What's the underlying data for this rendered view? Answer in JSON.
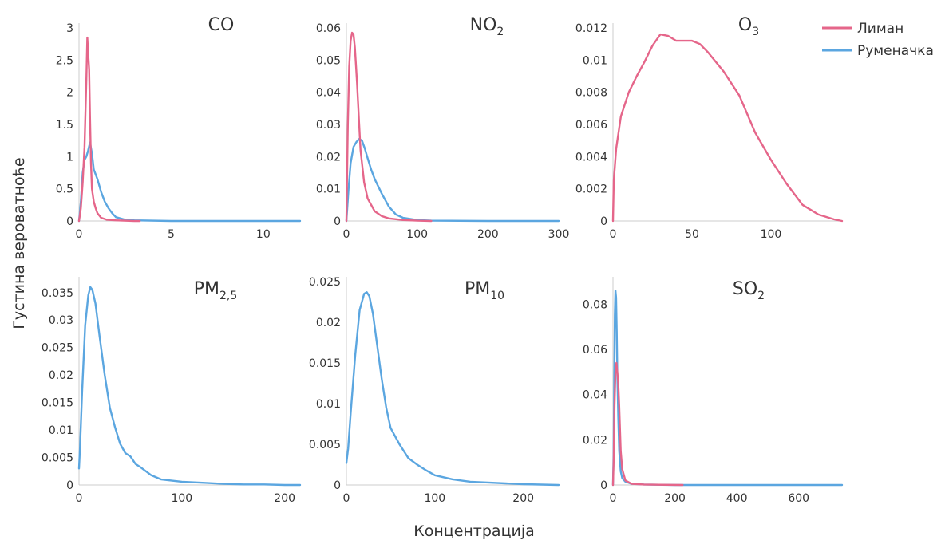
{
  "figure": {
    "ylabel": "Густина вероватноће",
    "xlabel": "Концентрација",
    "legend": {
      "placement": "top-right",
      "items": [
        {
          "name": "Лиман",
          "color": "#e5668a"
        },
        {
          "name": "Руменачка",
          "color": "#5ba6e0"
        }
      ]
    }
  },
  "chart_data": [
    {
      "type": "line",
      "title_main": "CO",
      "title_sub": "",
      "xlim": [
        0,
        12
      ],
      "ylim": [
        0,
        3
      ],
      "xticks": [
        0,
        5,
        10
      ],
      "yticks": [
        0,
        0.5,
        1,
        1.5,
        2,
        2.5,
        3
      ],
      "xtick_labels": [
        "0",
        "5",
        "10"
      ],
      "ytick_labels": [
        "0",
        "0.5",
        "1",
        "1.5",
        "2",
        "2.5",
        "3"
      ],
      "series": [
        {
          "name": "Лиман",
          "color": "#e5668a",
          "x": [
            0,
            0.1,
            0.2,
            0.3,
            0.4,
            0.45,
            0.5,
            0.55,
            0.6,
            0.65,
            0.7,
            0.8,
            0.9,
            1.0,
            1.2,
            1.5,
            2.0,
            3.0,
            3.3
          ],
          "y": [
            0,
            0.2,
            0.6,
            1.15,
            2.2,
            2.85,
            2.6,
            2.35,
            1.6,
            0.9,
            0.5,
            0.3,
            0.2,
            0.12,
            0.05,
            0.02,
            0.01,
            0,
            0
          ]
        },
        {
          "name": "Руменачка",
          "color": "#5ba6e0",
          "x": [
            0,
            0.1,
            0.2,
            0.3,
            0.4,
            0.5,
            0.6,
            0.7,
            0.8,
            1.0,
            1.2,
            1.4,
            1.5,
            1.6,
            1.8,
            2.0,
            2.5,
            3.0,
            5.0,
            8.0,
            12.0
          ],
          "y": [
            0,
            0.3,
            0.75,
            0.95,
            1.0,
            1.1,
            1.22,
            1.05,
            0.8,
            0.65,
            0.45,
            0.3,
            0.25,
            0.2,
            0.12,
            0.06,
            0.02,
            0.01,
            0,
            0,
            0
          ]
        }
      ]
    },
    {
      "type": "line",
      "title_main": "NO",
      "title_sub": "2",
      "xlim": [
        0,
        300
      ],
      "ylim": [
        0,
        0.06
      ],
      "xticks": [
        0,
        100,
        200,
        300
      ],
      "yticks": [
        0,
        0.01,
        0.02,
        0.03,
        0.04,
        0.05,
        0.06
      ],
      "xtick_labels": [
        "0",
        "100",
        "200",
        "300"
      ],
      "ytick_labels": [
        "0",
        "0.01",
        "0.02",
        "0.03",
        "0.04",
        "0.05",
        "0.06"
      ],
      "series": [
        {
          "name": "Лиман",
          "color": "#e5668a",
          "x": [
            0,
            2,
            4,
            6,
            8,
            10,
            12,
            15,
            18,
            20,
            25,
            30,
            40,
            50,
            60,
            80,
            100,
            120
          ],
          "y": [
            0,
            0.03,
            0.048,
            0.056,
            0.0585,
            0.058,
            0.054,
            0.043,
            0.03,
            0.022,
            0.012,
            0.007,
            0.003,
            0.0015,
            0.0008,
            0.0003,
            0.0001,
            0
          ]
        },
        {
          "name": "Руменачка",
          "color": "#5ba6e0",
          "x": [
            0,
            3,
            6,
            10,
            14,
            18,
            22,
            26,
            30,
            35,
            40,
            50,
            60,
            70,
            80,
            100,
            120,
            200,
            300
          ],
          "y": [
            0,
            0.01,
            0.018,
            0.023,
            0.0245,
            0.0255,
            0.025,
            0.0225,
            0.0195,
            0.016,
            0.013,
            0.0085,
            0.0045,
            0.002,
            0.001,
            0.0003,
            0.0001,
            0,
            0
          ]
        }
      ]
    },
    {
      "type": "line",
      "title_main": "O",
      "title_sub": "3",
      "xlim": [
        0,
        145
      ],
      "ylim": [
        0,
        0.012
      ],
      "xticks": [
        0,
        50,
        100
      ],
      "yticks": [
        0,
        0.002,
        0.004,
        0.006,
        0.008,
        0.01,
        0.012
      ],
      "xtick_labels": [
        "0",
        "50",
        "100"
      ],
      "ytick_labels": [
        "0",
        "0.002",
        "0.004",
        "0.006",
        "0.008",
        "0.01",
        "0.012"
      ],
      "series": [
        {
          "name": "Лиман",
          "color": "#e5668a",
          "x": [
            0,
            0.5,
            2,
            5,
            10,
            15,
            20,
            25,
            30,
            35,
            40,
            45,
            50,
            55,
            60,
            70,
            80,
            90,
            100,
            110,
            120,
            130,
            140,
            145
          ],
          "y": [
            0,
            0.0025,
            0.0045,
            0.0065,
            0.008,
            0.009,
            0.0099,
            0.0109,
            0.0116,
            0.0115,
            0.0112,
            0.0112,
            0.0112,
            0.011,
            0.0105,
            0.0093,
            0.0078,
            0.0055,
            0.0038,
            0.0023,
            0.001,
            0.0004,
            0.0001,
            0
          ]
        }
      ]
    },
    {
      "type": "line",
      "title_main": "PM",
      "title_sub": "2,5",
      "xlim": [
        0,
        215
      ],
      "ylim": [
        0,
        0.037
      ],
      "xticks": [
        0,
        100,
        200
      ],
      "yticks": [
        0,
        0.005,
        0.01,
        0.015,
        0.02,
        0.025,
        0.03,
        0.035
      ],
      "xtick_labels": [
        "0",
        "100",
        "200"
      ],
      "ytick_labels": [
        "0",
        "0.005",
        "0.01",
        "0.015",
        "0.02",
        "0.025",
        "0.03",
        "0.035"
      ],
      "series": [
        {
          "name": "Руменачка",
          "color": "#5ba6e0",
          "x": [
            0,
            1,
            3,
            6,
            9,
            11,
            13,
            16,
            20,
            25,
            30,
            35,
            40,
            45,
            50,
            55,
            60,
            70,
            80,
            100,
            120,
            140,
            160,
            180,
            200,
            215
          ],
          "y": [
            0.003,
            0.007,
            0.017,
            0.029,
            0.0345,
            0.036,
            0.0355,
            0.033,
            0.027,
            0.02,
            0.014,
            0.0105,
            0.0075,
            0.0058,
            0.0052,
            0.0038,
            0.0032,
            0.0018,
            0.001,
            0.0006,
            0.0004,
            0.0002,
            0.0001,
            0.0001,
            0,
            0
          ]
        }
      ]
    },
    {
      "type": "line",
      "title_main": "PM",
      "title_sub": "10",
      "xlim": [
        0,
        240
      ],
      "ylim": [
        0,
        0.025
      ],
      "xticks": [
        0,
        100,
        200
      ],
      "yticks": [
        0,
        0.005,
        0.01,
        0.015,
        0.02,
        0.025
      ],
      "xtick_labels": [
        "0",
        "100",
        "200"
      ],
      "ytick_labels": [
        "0",
        "0.005",
        "0.01",
        "0.015",
        "0.02",
        "0.025"
      ],
      "series": [
        {
          "name": "Руменачка",
          "color": "#5ba6e0",
          "x": [
            0,
            2,
            5,
            10,
            15,
            20,
            23,
            26,
            30,
            35,
            40,
            45,
            50,
            60,
            70,
            80,
            90,
            100,
            120,
            140,
            160,
            180,
            200,
            240
          ],
          "y": [
            0.0027,
            0.0045,
            0.009,
            0.016,
            0.0215,
            0.0235,
            0.0237,
            0.0232,
            0.021,
            0.017,
            0.013,
            0.0095,
            0.007,
            0.005,
            0.0033,
            0.0025,
            0.0018,
            0.0012,
            0.0007,
            0.0004,
            0.0003,
            0.0002,
            0.0001,
            0
          ]
        }
      ]
    },
    {
      "type": "line",
      "title_main": "SO",
      "title_sub": "2",
      "xlim": [
        0,
        740
      ],
      "ylim": [
        0,
        0.09
      ],
      "xticks": [
        0,
        200,
        400,
        600
      ],
      "yticks": [
        0,
        0.02,
        0.04,
        0.06,
        0.08
      ],
      "xtick_labels": [
        "0",
        "200",
        "400",
        "600"
      ],
      "ytick_labels": [
        "0",
        "0.02",
        "0.04",
        "0.06",
        "0.08"
      ],
      "series": [
        {
          "name": "Лиман",
          "color": "#e5668a",
          "x": [
            0,
            2,
            5,
            8,
            11,
            14,
            17,
            20,
            25,
            30,
            40,
            60,
            100,
            150,
            225
          ],
          "y": [
            0,
            0.01,
            0.035,
            0.05,
            0.054,
            0.05,
            0.045,
            0.035,
            0.015,
            0.007,
            0.002,
            0.0005,
            0.0002,
            0.0001,
            0
          ]
        },
        {
          "name": "Руменачка",
          "color": "#5ba6e0",
          "x": [
            0,
            2,
            4,
            6,
            8,
            10,
            12,
            14,
            17,
            20,
            25,
            30,
            40,
            60,
            100,
            200,
            400,
            740
          ],
          "y": [
            0,
            0.015,
            0.045,
            0.075,
            0.086,
            0.083,
            0.068,
            0.05,
            0.03,
            0.015,
            0.006,
            0.003,
            0.0015,
            0.0005,
            0.0002,
            0,
            0,
            0
          ]
        }
      ]
    }
  ]
}
